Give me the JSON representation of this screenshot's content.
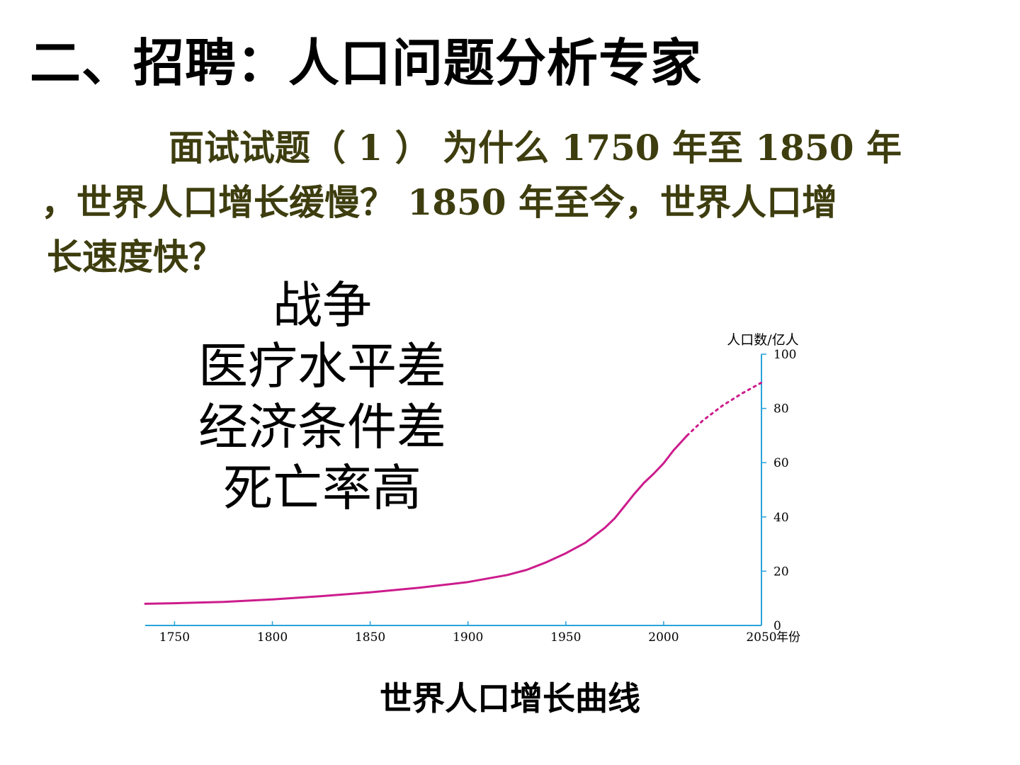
{
  "slide": {
    "title": "二、招聘：人口问题分析专家",
    "question": {
      "lines": [
        "面试试题（ 1 ） 为什么 1750 年至 1850 年",
        "，世界人口增长缓慢？ 1850 年至今，世界人口增",
        "长速度快？"
      ]
    },
    "reasons": [
      "战争",
      "医疗水平差",
      "经济条件差",
      "死亡率高"
    ]
  },
  "chart_data": {
    "type": "line",
    "title": "世界人口增长曲线",
    "xlabel": "年份",
    "ylabel": "人口数/亿人",
    "xlim": [
      1735,
      2050
    ],
    "ylim": [
      0,
      100
    ],
    "x_ticks": [
      1750,
      1800,
      1850,
      1900,
      1950,
      2000,
      2050
    ],
    "y_ticks": [
      0,
      20,
      40,
      60,
      80,
      100
    ],
    "y_axis_position": "right",
    "grid": false,
    "colors": {
      "axis": "#29a3d9",
      "line": "#cc1c8c",
      "tick_text": "#000000"
    },
    "series": [
      {
        "style": "solid",
        "x": [
          1735,
          1750,
          1775,
          1800,
          1825,
          1850,
          1875,
          1900,
          1920,
          1930,
          1940,
          1950,
          1960,
          1970,
          1975,
          1980,
          1985,
          1990,
          1995,
          2000,
          2005,
          2012
        ],
        "y": [
          8,
          8.2,
          8.7,
          9.6,
          10.8,
          12.2,
          13.9,
          16,
          18.6,
          20.5,
          23.3,
          26.6,
          30.5,
          36,
          39.5,
          44,
          48.5,
          52.6,
          56,
          59.8,
          64.5,
          70
        ]
      },
      {
        "style": "dotted",
        "x": [
          2012,
          2020,
          2030,
          2040,
          2050
        ],
        "y": [
          70,
          75.5,
          81,
          85.5,
          89.5
        ]
      }
    ]
  }
}
